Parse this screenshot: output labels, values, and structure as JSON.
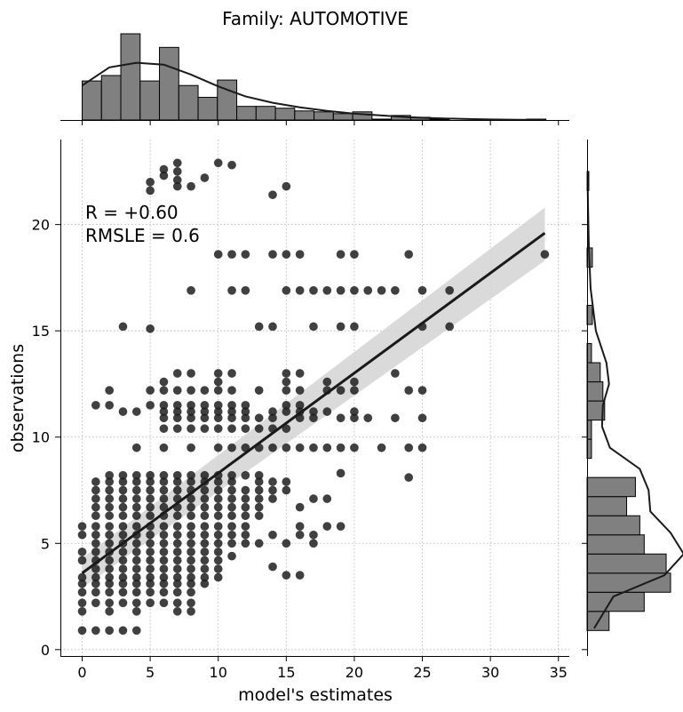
{
  "chart_data": {
    "type": "scatter",
    "title": "Family: AUTOMOTIVE",
    "xlabel": "model's estimates",
    "ylabel": "observations",
    "xlim": [
      -1.6,
      35.8
    ],
    "ylim": [
      -0.3,
      24.0
    ],
    "xticks": [
      0,
      5,
      10,
      15,
      20,
      25,
      30,
      35
    ],
    "yticks": [
      0,
      5,
      10,
      15,
      20
    ],
    "grid": true,
    "annotation": {
      "r_line": "R = +0.60",
      "rmsle_line": "RMSLE =  0.6"
    },
    "regression": {
      "x": [
        0,
        34
      ],
      "y": [
        3.6,
        19.6
      ],
      "ci_low": [
        2.9,
        18.3
      ],
      "ci_high": [
        4.3,
        20.8
      ]
    },
    "top_histogram": {
      "bin_edges": [
        0,
        1.42,
        2.84,
        4.26,
        5.68,
        7.1,
        8.52,
        9.94,
        11.36,
        12.78,
        14.2,
        15.62,
        17.04,
        18.46,
        19.88,
        21.3,
        22.72,
        24.14,
        25.56,
        26.98,
        28.4,
        29.82,
        31.24,
        32.66,
        34.08
      ],
      "counts": [
        43,
        49,
        95,
        43,
        80,
        38,
        25,
        44,
        15,
        15,
        13,
        10,
        9,
        7,
        9,
        1,
        5,
        3,
        1,
        0,
        0,
        0,
        0,
        1
      ],
      "kde_x": [
        0,
        2,
        4,
        6,
        8,
        10,
        12,
        14,
        16,
        18,
        20,
        22,
        24,
        26,
        28,
        30,
        32,
        34
      ],
      "kde_y": [
        38,
        58,
        63,
        61,
        50,
        37,
        26,
        19,
        14,
        10,
        7,
        5,
        3,
        2,
        1.2,
        0.6,
        0.3,
        0.1
      ]
    },
    "right_histogram": {
      "bin_edges": [
        0.9,
        1.8,
        2.7,
        3.6,
        4.5,
        5.4,
        6.3,
        7.2,
        8.1,
        9.0,
        9.9,
        10.8,
        11.7,
        12.6,
        13.5,
        14.4,
        15.3,
        16.2,
        17.1,
        18.0,
        18.9,
        19.8,
        20.7,
        21.6,
        22.5
      ],
      "counts": [
        25,
        65,
        95,
        90,
        65,
        60,
        45,
        55,
        0,
        5,
        5,
        20,
        18,
        15,
        5,
        0,
        6,
        0,
        0,
        6,
        0,
        0,
        0,
        2
      ],
      "kde_y": [
        1.0,
        2.5,
        3.5,
        4.5,
        5.5,
        6.5,
        7.5,
        8.5,
        9.5,
        10.5,
        11.5,
        12.5,
        13.5,
        15,
        17,
        19,
        21,
        22.5
      ],
      "kde_x": [
        8,
        30,
        88,
        110,
        95,
        72,
        70,
        60,
        26,
        17,
        18,
        25,
        22,
        10,
        4,
        2,
        1,
        0.5
      ]
    },
    "points": [
      [
        0,
        0.9
      ],
      [
        1,
        0.9
      ],
      [
        2,
        0.9
      ],
      [
        3,
        0.9
      ],
      [
        4,
        0.9
      ],
      [
        0,
        1.8
      ],
      [
        2,
        1.8
      ],
      [
        4,
        1.8
      ],
      [
        7,
        1.8
      ],
      [
        8,
        1.8
      ],
      [
        0,
        2.2
      ],
      [
        1,
        2.2
      ],
      [
        2,
        2.2
      ],
      [
        3,
        2.2
      ],
      [
        4,
        2.2
      ],
      [
        5,
        2.2
      ],
      [
        6,
        2.2
      ],
      [
        7,
        2.2
      ],
      [
        8,
        2.2
      ],
      [
        0,
        2.7
      ],
      [
        1,
        2.7
      ],
      [
        2,
        2.7
      ],
      [
        3,
        2.7
      ],
      [
        4,
        2.7
      ],
      [
        5,
        2.7
      ],
      [
        6,
        2.7
      ],
      [
        7,
        2.7
      ],
      [
        8,
        2.7
      ],
      [
        0,
        3.1
      ],
      [
        1,
        3.1
      ],
      [
        2,
        3.1
      ],
      [
        3,
        3.1
      ],
      [
        4,
        3.1
      ],
      [
        5,
        3.1
      ],
      [
        6,
        3.1
      ],
      [
        7,
        3.1
      ],
      [
        8,
        3.1
      ],
      [
        9,
        3.1
      ],
      [
        0,
        3.4
      ],
      [
        1,
        3.4
      ],
      [
        2,
        3.4
      ],
      [
        3,
        3.4
      ],
      [
        4,
        3.4
      ],
      [
        5,
        3.4
      ],
      [
        6,
        3.4
      ],
      [
        7,
        3.4
      ],
      [
        8,
        3.4
      ],
      [
        9,
        3.4
      ],
      [
        10,
        3.4
      ],
      [
        15,
        3.5
      ],
      [
        16,
        3.5
      ],
      [
        1,
        3.8
      ],
      [
        2,
        3.8
      ],
      [
        3,
        3.8
      ],
      [
        4,
        3.8
      ],
      [
        5,
        3.8
      ],
      [
        6,
        3.8
      ],
      [
        7,
        3.8
      ],
      [
        8,
        3.8
      ],
      [
        9,
        3.8
      ],
      [
        10,
        3.8
      ],
      [
        14,
        3.9
      ],
      [
        0,
        4.2
      ],
      [
        1,
        4.2
      ],
      [
        2,
        4.2
      ],
      [
        3,
        4.2
      ],
      [
        4,
        4.2
      ],
      [
        5,
        4.2
      ],
      [
        6,
        4.2
      ],
      [
        7,
        4.2
      ],
      [
        8,
        4.2
      ],
      [
        9,
        4.2
      ],
      [
        10,
        4.2
      ],
      [
        11,
        4.4
      ],
      [
        0,
        4.6
      ],
      [
        1,
        4.6
      ],
      [
        2,
        4.6
      ],
      [
        3,
        4.6
      ],
      [
        4,
        4.6
      ],
      [
        5,
        4.6
      ],
      [
        6,
        4.6
      ],
      [
        7,
        4.6
      ],
      [
        8,
        4.6
      ],
      [
        9,
        4.6
      ],
      [
        10,
        4.6
      ],
      [
        1,
        5.0
      ],
      [
        2,
        5.0
      ],
      [
        3,
        5.0
      ],
      [
        4,
        5.0
      ],
      [
        5,
        5.0
      ],
      [
        6,
        5.0
      ],
      [
        7,
        5.0
      ],
      [
        8,
        5.0
      ],
      [
        9,
        5.0
      ],
      [
        10,
        5.0
      ],
      [
        11,
        5.0
      ],
      [
        12,
        5.0
      ],
      [
        13,
        5.0
      ],
      [
        15,
        5.0
      ],
      [
        17,
        5.0
      ],
      [
        0,
        5.4
      ],
      [
        1,
        5.4
      ],
      [
        2,
        5.4
      ],
      [
        3,
        5.4
      ],
      [
        4,
        5.4
      ],
      [
        5,
        5.4
      ],
      [
        6,
        5.4
      ],
      [
        7,
        5.4
      ],
      [
        8,
        5.4
      ],
      [
        9,
        5.4
      ],
      [
        10,
        5.4
      ],
      [
        11,
        5.4
      ],
      [
        12,
        5.4
      ],
      [
        14,
        5.4
      ],
      [
        16,
        5.4
      ],
      [
        17,
        5.4
      ],
      [
        0,
        5.8
      ],
      [
        1,
        5.8
      ],
      [
        2,
        5.8
      ],
      [
        3,
        5.8
      ],
      [
        4,
        5.8
      ],
      [
        5,
        5.8
      ],
      [
        6,
        5.8
      ],
      [
        7,
        5.8
      ],
      [
        8,
        5.8
      ],
      [
        9,
        5.8
      ],
      [
        10,
        5.8
      ],
      [
        11,
        5.8
      ],
      [
        12,
        5.8
      ],
      [
        16,
        5.8
      ],
      [
        18,
        5.8
      ],
      [
        19,
        5.8
      ],
      [
        1,
        6.3
      ],
      [
        2,
        6.3
      ],
      [
        3,
        6.3
      ],
      [
        4,
        6.3
      ],
      [
        5,
        6.3
      ],
      [
        6,
        6.3
      ],
      [
        7,
        6.3
      ],
      [
        8,
        6.3
      ],
      [
        9,
        6.3
      ],
      [
        10,
        6.3
      ],
      [
        11,
        6.3
      ],
      [
        12,
        6.3
      ],
      [
        13,
        6.3
      ],
      [
        16,
        6.7
      ],
      [
        1,
        6.7
      ],
      [
        2,
        6.7
      ],
      [
        3,
        6.7
      ],
      [
        4,
        6.7
      ],
      [
        5,
        6.7
      ],
      [
        6,
        6.7
      ],
      [
        7,
        6.7
      ],
      [
        8,
        6.7
      ],
      [
        9,
        6.7
      ],
      [
        10,
        6.7
      ],
      [
        11,
        6.7
      ],
      [
        12,
        6.7
      ],
      [
        13,
        6.7
      ],
      [
        1,
        7.1
      ],
      [
        2,
        7.1
      ],
      [
        3,
        7.1
      ],
      [
        4,
        7.1
      ],
      [
        5,
        7.1
      ],
      [
        6,
        7.1
      ],
      [
        7,
        7.1
      ],
      [
        8,
        7.1
      ],
      [
        9,
        7.1
      ],
      [
        10,
        7.1
      ],
      [
        11,
        7.1
      ],
      [
        12,
        7.1
      ],
      [
        13,
        7.1
      ],
      [
        14,
        7.1
      ],
      [
        17,
        7.1
      ],
      [
        18,
        7.1
      ],
      [
        1,
        7.5
      ],
      [
        2,
        7.5
      ],
      [
        3,
        7.5
      ],
      [
        4,
        7.5
      ],
      [
        5,
        7.5
      ],
      [
        6,
        7.5
      ],
      [
        7,
        7.5
      ],
      [
        8,
        7.5
      ],
      [
        9,
        7.5
      ],
      [
        10,
        7.5
      ],
      [
        11,
        7.5
      ],
      [
        12,
        7.5
      ],
      [
        13,
        7.5
      ],
      [
        14,
        7.5
      ],
      [
        15,
        7.5
      ],
      [
        1,
        7.9
      ],
      [
        2,
        7.9
      ],
      [
        3,
        7.9
      ],
      [
        4,
        7.9
      ],
      [
        5,
        7.9
      ],
      [
        6,
        7.9
      ],
      [
        7,
        7.9
      ],
      [
        8,
        7.9
      ],
      [
        9,
        7.9
      ],
      [
        10,
        7.9
      ],
      [
        11,
        7.9
      ],
      [
        13,
        7.9
      ],
      [
        14,
        7.9
      ],
      [
        15,
        7.9
      ],
      [
        24,
        8.1
      ],
      [
        2,
        8.2
      ],
      [
        3,
        8.2
      ],
      [
        4,
        8.2
      ],
      [
        5,
        8.2
      ],
      [
        6,
        8.2
      ],
      [
        7,
        8.2
      ],
      [
        8,
        8.2
      ],
      [
        9,
        8.2
      ],
      [
        10,
        8.2
      ],
      [
        11,
        8.2
      ],
      [
        12,
        8.2
      ],
      [
        13,
        8.2
      ],
      [
        19,
        8.3
      ],
      [
        4,
        9.5
      ],
      [
        6,
        9.5
      ],
      [
        8,
        9.5
      ],
      [
        10,
        9.5
      ],
      [
        11,
        9.5
      ],
      [
        12,
        9.5
      ],
      [
        13,
        9.5
      ],
      [
        14,
        9.5
      ],
      [
        15,
        9.5
      ],
      [
        16,
        9.5
      ],
      [
        17,
        9.5
      ],
      [
        18,
        9.5
      ],
      [
        19,
        9.5
      ],
      [
        20,
        9.5
      ],
      [
        22,
        9.5
      ],
      [
        24,
        9.5
      ],
      [
        25,
        9.5
      ],
      [
        6,
        10.4
      ],
      [
        7,
        10.4
      ],
      [
        8,
        10.4
      ],
      [
        9,
        10.4
      ],
      [
        10,
        10.4
      ],
      [
        11,
        10.4
      ],
      [
        12,
        10.4
      ],
      [
        13,
        10.4
      ],
      [
        14,
        10.4
      ],
      [
        15,
        10.4
      ],
      [
        6,
        10.9
      ],
      [
        7,
        10.9
      ],
      [
        8,
        10.9
      ],
      [
        9,
        10.9
      ],
      [
        10,
        10.9
      ],
      [
        11,
        10.9
      ],
      [
        12,
        10.9
      ],
      [
        13,
        10.9
      ],
      [
        14,
        10.9
      ],
      [
        16,
        10.9
      ],
      [
        17,
        10.9
      ],
      [
        19,
        10.9
      ],
      [
        20,
        10.9
      ],
      [
        21,
        10.9
      ],
      [
        23,
        10.9
      ],
      [
        25,
        10.9
      ],
      [
        1,
        11.5
      ],
      [
        2,
        11.5
      ],
      [
        3,
        11.2
      ],
      [
        4,
        11.2
      ],
      [
        6,
        11.2
      ],
      [
        7,
        11.2
      ],
      [
        8,
        11.2
      ],
      [
        9,
        11.2
      ],
      [
        10,
        11.2
      ],
      [
        11,
        11.2
      ],
      [
        12,
        11.2
      ],
      [
        14,
        11.2
      ],
      [
        15,
        11.2
      ],
      [
        16,
        11.2
      ],
      [
        17,
        11.2
      ],
      [
        18,
        11.2
      ],
      [
        20,
        11.2
      ],
      [
        5,
        11.5
      ],
      [
        6,
        11.5
      ],
      [
        7,
        11.5
      ],
      [
        8,
        11.5
      ],
      [
        9,
        11.5
      ],
      [
        10,
        11.5
      ],
      [
        11,
        11.5
      ],
      [
        12,
        11.5
      ],
      [
        15,
        11.5
      ],
      [
        16,
        11.5
      ],
      [
        2,
        12.2
      ],
      [
        5,
        12.2
      ],
      [
        6,
        12.2
      ],
      [
        7,
        12.2
      ],
      [
        8,
        12.2
      ],
      [
        9,
        12.2
      ],
      [
        10,
        12.2
      ],
      [
        11,
        12.2
      ],
      [
        13,
        12.2
      ],
      [
        15,
        12.2
      ],
      [
        16,
        12.2
      ],
      [
        18,
        12.2
      ],
      [
        19,
        12.2
      ],
      [
        20,
        12.2
      ],
      [
        24,
        12.2
      ],
      [
        25,
        12.2
      ],
      [
        6,
        12.6
      ],
      [
        10,
        12.6
      ],
      [
        15,
        12.6
      ],
      [
        18,
        12.6
      ],
      [
        20,
        12.6
      ],
      [
        7,
        13.0
      ],
      [
        8,
        13.0
      ],
      [
        10,
        13.0
      ],
      [
        11,
        13.0
      ],
      [
        15,
        13.0
      ],
      [
        16,
        13.0
      ],
      [
        23,
        13.0
      ],
      [
        3,
        15.2
      ],
      [
        5,
        15.1
      ],
      [
        13,
        15.2
      ],
      [
        14,
        15.2
      ],
      [
        17,
        15.2
      ],
      [
        19,
        15.2
      ],
      [
        20,
        15.2
      ],
      [
        25,
        15.2
      ],
      [
        27,
        15.2
      ],
      [
        8,
        16.9
      ],
      [
        11,
        16.9
      ],
      [
        12,
        16.9
      ],
      [
        15,
        16.9
      ],
      [
        16,
        16.9
      ],
      [
        17,
        16.9
      ],
      [
        18,
        16.9
      ],
      [
        19,
        16.9
      ],
      [
        20,
        16.9
      ],
      [
        21,
        16.9
      ],
      [
        22,
        16.9
      ],
      [
        23,
        16.9
      ],
      [
        25,
        16.9
      ],
      [
        27,
        16.9
      ],
      [
        10,
        18.6
      ],
      [
        11,
        18.6
      ],
      [
        12,
        18.6
      ],
      [
        14,
        18.6
      ],
      [
        15,
        18.6
      ],
      [
        16,
        18.6
      ],
      [
        19,
        18.6
      ],
      [
        20,
        18.6
      ],
      [
        24,
        18.6
      ],
      [
        34,
        18.6
      ],
      [
        14,
        21.4
      ],
      [
        15,
        21.8
      ],
      [
        5,
        21.6
      ],
      [
        5,
        22.0
      ],
      [
        6,
        22.3
      ],
      [
        6,
        22.6
      ],
      [
        7,
        21.8
      ],
      [
        7,
        22.1
      ],
      [
        7,
        22.5
      ],
      [
        7,
        22.9
      ],
      [
        8,
        21.8
      ],
      [
        9,
        22.2
      ],
      [
        10,
        22.9
      ],
      [
        11,
        22.8
      ]
    ]
  }
}
